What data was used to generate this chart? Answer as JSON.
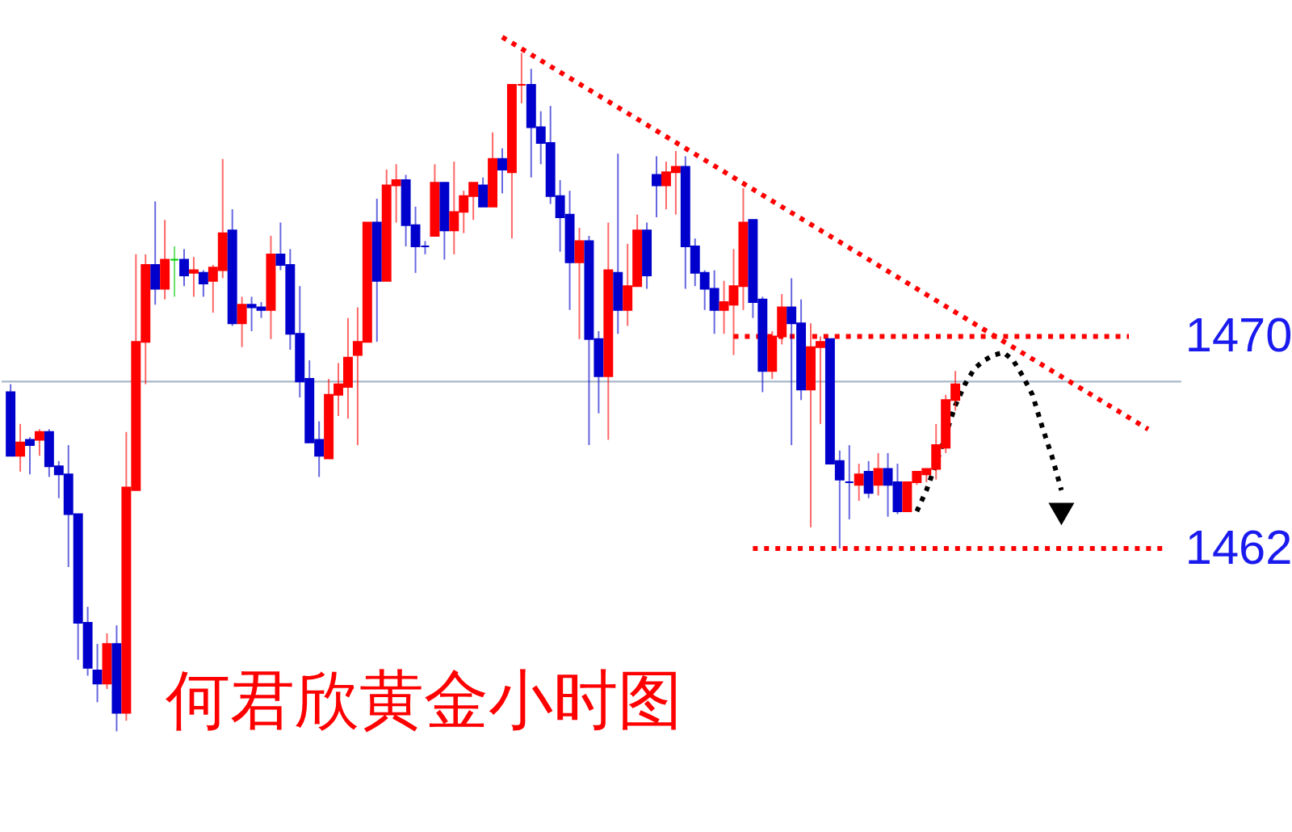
{
  "chart_data": {
    "type": "candlestick",
    "title": "何君欣黄金小时图",
    "categories": [
      null,
      null,
      null,
      null,
      null,
      null,
      null,
      null,
      null,
      null,
      null,
      null,
      null,
      null,
      null,
      null,
      null,
      null,
      null,
      null,
      null,
      null,
      null,
      null,
      null,
      null,
      null,
      null,
      null,
      null,
      null,
      null,
      null,
      null,
      null,
      null,
      null,
      null,
      null,
      null,
      null,
      null,
      null,
      null,
      null,
      null,
      null,
      null,
      null,
      null,
      null,
      null,
      null,
      null,
      null,
      null,
      null,
      null,
      null,
      null,
      null,
      null,
      null,
      null,
      null,
      null,
      null,
      null,
      null,
      null,
      null,
      null,
      null,
      null,
      null,
      null,
      null,
      null,
      null,
      null,
      null,
      null,
      null,
      null,
      null,
      null,
      null,
      null,
      null,
      null,
      null,
      null,
      null,
      null,
      null,
      null,
      null,
      null,
      null,
      null,
      null,
      null,
      null,
      null,
      null,
      null,
      null,
      null,
      null,
      null,
      null,
      null,
      null,
      null,
      null,
      null,
      null,
      null,
      null,
      null,
      null
    ],
    "ohlc": [
      [
        1467.9,
        1468.2,
        1465.5,
        1465.5
      ],
      [
        1465.5,
        1466.7,
        1464.9,
        1466.0
      ],
      [
        1466.1,
        1466.2,
        1464.8,
        1465.9
      ],
      [
        1466.1,
        1466.5,
        1465.5,
        1466.4
      ],
      [
        1466.4,
        1466.5,
        1464.7,
        1465.1
      ],
      [
        1465.1,
        1465.3,
        1463.9,
        1464.8
      ],
      [
        1464.8,
        1465.9,
        1461.3,
        1463.3
      ],
      [
        1463.3,
        1463.3,
        1457.8,
        1459.2
      ],
      [
        1459.2,
        1459.8,
        1457.2,
        1457.5
      ],
      [
        1457.4,
        1458.4,
        1456.2,
        1456.9
      ],
      [
        1456.9,
        1458.8,
        1456.7,
        1458.4
      ],
      [
        1458.4,
        1459.1,
        1455.1,
        1455.8
      ],
      [
        1455.8,
        1466.4,
        1455.5,
        1464.3
      ],
      [
        1464.2,
        1473.1,
        1464.2,
        1469.8
      ],
      [
        1469.8,
        1473.1,
        1468.2,
        1472.7
      ],
      [
        1472.7,
        1475.1,
        1471.2,
        1471.8
      ],
      [
        1471.8,
        1474.4,
        1471.4,
        1472.9
      ],
      [
        1472.9,
        1473.4,
        1471.5,
        1472.9
      ],
      [
        1472.9,
        1473.3,
        1471.9,
        1472.3
      ],
      [
        1472.4,
        1473.0,
        1471.5,
        1472.5
      ],
      [
        1472.4,
        1472.5,
        1471.5,
        1472.0
      ],
      [
        1472.1,
        1472.7,
        1470.9,
        1472.6
      ],
      [
        1472.5,
        1476.7,
        1472.2,
        1473.9
      ],
      [
        1474.0,
        1474.8,
        1470.4,
        1470.5
      ],
      [
        1470.5,
        1471.5,
        1469.6,
        1471.2
      ],
      [
        1471.2,
        1471.5,
        1470.2,
        1471.1
      ],
      [
        1471.1,
        1471.3,
        1470.7,
        1471.0
      ],
      [
        1471.0,
        1473.8,
        1469.9,
        1473.1
      ],
      [
        1473.1,
        1474.3,
        1472.5,
        1472.7
      ],
      [
        1472.7,
        1473.3,
        1469.5,
        1470.1
      ],
      [
        1470.1,
        1471.9,
        1467.7,
        1468.3
      ],
      [
        1468.4,
        1469.1,
        1466.0,
        1466.0
      ],
      [
        1466.1,
        1466.8,
        1464.7,
        1465.5
      ],
      [
        1465.4,
        1468.4,
        1465.4,
        1467.8
      ],
      [
        1467.8,
        1469.0,
        1467.0,
        1468.2
      ],
      [
        1468.1,
        1470.7,
        1466.9,
        1469.2
      ],
      [
        1469.3,
        1471.1,
        1465.9,
        1469.8
      ],
      [
        1469.8,
        1474.3,
        1469.8,
        1474.3
      ],
      [
        1474.3,
        1475.2,
        1469.8,
        1472.1
      ],
      [
        1472.1,
        1476.3,
        1472.1,
        1475.7
      ],
      [
        1475.7,
        1476.5,
        1474.3,
        1475.9
      ],
      [
        1475.9,
        1476.1,
        1473.4,
        1474.2
      ],
      [
        1474.2,
        1474.9,
        1472.4,
        1473.4
      ],
      [
        1473.4,
        1473.6,
        1473.1,
        1473.4
      ],
      [
        1473.8,
        1476.5,
        1473.8,
        1475.8
      ],
      [
        1475.8,
        1475.8,
        1472.9,
        1474.0
      ],
      [
        1474.0,
        1476.6,
        1473.1,
        1474.7
      ],
      [
        1474.7,
        1475.5,
        1473.9,
        1475.3
      ],
      [
        1475.3,
        1475.8,
        1474.4,
        1475.8
      ],
      [
        1475.7,
        1476.0,
        1474.9,
        1474.9
      ],
      [
        1474.9,
        1477.7,
        1474.9,
        1476.7
      ],
      [
        1476.7,
        1477.1,
        1475.4,
        1476.3
      ],
      [
        1476.2,
        1479.5,
        1473.7,
        1479.5
      ],
      [
        1479.5,
        1480.7,
        1478.8,
        1479.5
      ],
      [
        1479.5,
        1480.1,
        1476.0,
        1477.9
      ],
      [
        1477.9,
        1478.5,
        1476.5,
        1477.3
      ],
      [
        1477.3,
        1478.7,
        1475.0,
        1475.3
      ],
      [
        1475.3,
        1475.9,
        1473.2,
        1474.5
      ],
      [
        1474.6,
        1475.5,
        1471.0,
        1472.8
      ],
      [
        1472.8,
        1474.1,
        1469.9,
        1473.6
      ],
      [
        1473.6,
        1473.8,
        1465.9,
        1469.9
      ],
      [
        1469.9,
        1470.2,
        1467.1,
        1468.5
      ],
      [
        1468.5,
        1474.3,
        1466.1,
        1472.5
      ],
      [
        1472.4,
        1476.9,
        1470.1,
        1471.0
      ],
      [
        1471.0,
        1473.5,
        1470.4,
        1471.9
      ],
      [
        1471.9,
        1474.6,
        1471.9,
        1474.0
      ],
      [
        1474.0,
        1474.3,
        1471.8,
        1472.3
      ],
      [
        1476.1,
        1476.8,
        1474.5,
        1475.7
      ],
      [
        1475.7,
        1476.6,
        1474.8,
        1476.2
      ],
      [
        1476.2,
        1477.0,
        1474.6,
        1476.4
      ],
      [
        1476.4,
        1476.8,
        1471.8,
        1473.4
      ],
      [
        1473.4,
        1473.7,
        1471.9,
        1472.4
      ],
      [
        1472.4,
        1472.5,
        1471.0,
        1471.8
      ],
      [
        1471.8,
        1472.5,
        1470.1,
        1471.0
      ],
      [
        1471.0,
        1472.1,
        1470.1,
        1471.3
      ],
      [
        1471.2,
        1473.3,
        1469.3,
        1471.9
      ],
      [
        1471.9,
        1475.6,
        1471.0,
        1474.3
      ],
      [
        1474.4,
        1474.4,
        1470.7,
        1471.3
      ],
      [
        1471.4,
        1471.5,
        1467.9,
        1468.7
      ],
      [
        1468.7,
        1470.2,
        1468.4,
        1470.0
      ],
      [
        1470.0,
        1471.6,
        1469.7,
        1471.1
      ],
      [
        1471.1,
        1472.2,
        1465.9,
        1470.5
      ],
      [
        1470.5,
        1471.4,
        1467.6,
        1468.0
      ],
      [
        1468.0,
        1470.5,
        1462.8,
        1469.6
      ],
      [
        1469.6,
        1470.0,
        1466.7,
        1469.8
      ],
      [
        1469.9,
        1469.9,
        1465.2,
        1465.2
      ],
      [
        1465.3,
        1465.7,
        1462.0,
        1464.6
      ],
      [
        1464.5,
        1465.9,
        1463.1,
        1464.5
      ],
      [
        1464.4,
        1465.2,
        1463.8,
        1464.8
      ],
      [
        1464.9,
        1465.3,
        1463.9,
        1464.1
      ],
      [
        1464.4,
        1465.6,
        1464.0,
        1465.0
      ],
      [
        1465.0,
        1465.6,
        1463.2,
        1464.4
      ],
      [
        1464.5,
        1465.2,
        1463.3,
        1463.4
      ],
      [
        1463.4,
        1464.5,
        1463.4,
        1464.5
      ],
      [
        1464.5,
        1464.9,
        1464.4,
        1464.9
      ],
      [
        1464.8,
        1465.0,
        1464.5,
        1465.0
      ],
      [
        1465.0,
        1466.7,
        1464.6,
        1465.9
      ],
      [
        1465.8,
        1467.8,
        1465.6,
        1467.6
      ],
      [
        1467.6,
        1468.7,
        1467.2,
        1468.2
      ],
      null,
      null,
      null,
      null,
      null,
      null,
      null,
      null,
      null,
      null,
      null,
      null,
      null,
      null,
      null,
      null,
      null,
      null,
      null,
      null,
      null,
      null
    ],
    "colors": [
      "#0000cd",
      "#ff0000",
      "#0000cd",
      "#ff0000",
      "#0000cd",
      "#0000cd",
      "#0000cd",
      "#0000cd",
      "#0000cd",
      "#0000cd",
      "#ff0000",
      "#0000cd",
      "#ff0000",
      "#ff0000",
      "#ff0000",
      "#0000cd",
      "#ff0000",
      "#00cc00",
      "#0000cd",
      "#ff0000",
      "#0000cd",
      "#ff0000",
      "#ff0000",
      "#0000cd",
      "#ff0000",
      "#0000cd",
      "#0000cd",
      "#ff0000",
      "#0000cd",
      "#0000cd",
      "#0000cd",
      "#0000cd",
      "#0000cd",
      "#ff0000",
      "#ff0000",
      "#ff0000",
      "#ff0000",
      "#ff0000",
      "#0000cd",
      "#ff0000",
      "#ff0000",
      "#0000cd",
      "#0000cd",
      "#0000cd",
      "#ff0000",
      "#0000cd",
      "#ff0000",
      "#ff0000",
      "#ff0000",
      "#0000cd",
      "#ff0000",
      "#0000cd",
      "#ff0000",
      "#ff0000",
      "#0000cd",
      "#0000cd",
      "#0000cd",
      "#0000cd",
      "#0000cd",
      "#ff0000",
      "#0000cd",
      "#0000cd",
      "#ff0000",
      "#0000cd",
      "#ff0000",
      "#ff0000",
      "#0000cd",
      "#0000cd",
      "#ff0000",
      "#ff0000",
      "#0000cd",
      "#0000cd",
      "#0000cd",
      "#0000cd",
      "#ff0000",
      "#ff0000",
      "#ff0000",
      "#0000cd",
      "#0000cd",
      "#ff0000",
      "#ff0000",
      "#0000cd",
      "#0000cd",
      "#ff0000",
      "#ff0000",
      "#0000cd",
      "#0000cd",
      "#0000cd",
      "#ff0000",
      "#0000cd",
      "#ff0000",
      "#0000cd",
      "#0000cd",
      "#ff0000",
      "#ff0000",
      "#ff0000",
      "#ff0000",
      "#ff0000",
      "#ff0000",
      null,
      null,
      null,
      null,
      null,
      null,
      null,
      null,
      null,
      null,
      null,
      null,
      null,
      null,
      null,
      null,
      null,
      null,
      null,
      null,
      null,
      null
    ],
    "series": [
      {
        "type": "line",
        "values": [
          null,
          null,
          null,
          null,
          null,
          null,
          null,
          null,
          null,
          null,
          null,
          null,
          null,
          null,
          null,
          null,
          null,
          null,
          null,
          null,
          null,
          null,
          null,
          null,
          null,
          null,
          null,
          null,
          null,
          null,
          null,
          null,
          null,
          null,
          null,
          null,
          null,
          null,
          null,
          null,
          null,
          null,
          null,
          null,
          null,
          null,
          null,
          null,
          null,
          null,
          null,
          1481.3,
          null,
          null,
          null,
          null,
          null,
          null,
          null,
          null,
          null,
          null,
          null,
          null,
          null,
          null,
          null,
          null,
          null,
          null,
          null,
          null,
          null,
          null,
          null,
          null,
          null,
          null,
          null,
          null,
          null,
          null,
          null,
          null,
          null,
          null,
          null,
          null,
          null,
          null,
          null,
          null,
          null,
          null,
          null,
          null,
          null,
          null,
          null,
          null,
          null,
          null,
          null,
          null,
          null,
          null,
          null,
          null,
          null,
          null,
          null,
          null,
          null,
          null,
          null,
          null,
          null,
          null,
          1466.5,
          null,
          null
        ],
        "color": "#ff0000",
        "line_style": "dotted"
      },
      {
        "type": "line",
        "values": [
          null,
          null,
          null,
          null,
          null,
          null,
          null,
          null,
          null,
          null,
          null,
          null,
          null,
          null,
          null,
          null,
          null,
          null,
          null,
          null,
          null,
          null,
          null,
          null,
          null,
          null,
          null,
          null,
          null,
          null,
          null,
          null,
          null,
          null,
          null,
          null,
          null,
          null,
          null,
          null,
          null,
          null,
          null,
          null,
          null,
          null,
          null,
          null,
          null,
          null,
          null,
          null,
          null,
          null,
          null,
          null,
          null,
          null,
          null,
          null,
          null,
          null,
          null,
          null,
          null,
          null,
          null,
          null,
          null,
          null,
          null,
          null,
          null,
          null,
          null,
          1470,
          null,
          null,
          null,
          null,
          null,
          null,
          null,
          null,
          null,
          null,
          null,
          null,
          null,
          null,
          null,
          null,
          null,
          null,
          null,
          null,
          null,
          null,
          null,
          null,
          null,
          null,
          null,
          null,
          null,
          null,
          null,
          null,
          null,
          null,
          null,
          null,
          null,
          null,
          null,
          null,
          1470,
          null,
          null,
          null,
          null
        ],
        "color": "#ff0000",
        "line_style": "dotted"
      },
      {
        "type": "line",
        "values": [
          null,
          null,
          null,
          null,
          null,
          null,
          null,
          null,
          null,
          null,
          null,
          null,
          null,
          null,
          null,
          null,
          null,
          null,
          null,
          null,
          null,
          null,
          null,
          null,
          null,
          null,
          null,
          null,
          null,
          null,
          null,
          null,
          null,
          null,
          null,
          null,
          null,
          null,
          null,
          null,
          null,
          null,
          null,
          null,
          null,
          null,
          null,
          null,
          null,
          null,
          null,
          null,
          null,
          null,
          null,
          null,
          null,
          null,
          null,
          null,
          null,
          null,
          null,
          null,
          null,
          null,
          null,
          null,
          null,
          null,
          null,
          null,
          null,
          null,
          null,
          null,
          null,
          1462,
          null,
          null,
          null,
          null,
          null,
          null,
          null,
          null,
          null,
          null,
          null,
          null,
          null,
          null,
          null,
          null,
          null,
          null,
          null,
          null,
          null,
          null,
          null,
          null,
          null,
          null,
          null,
          null,
          null,
          null,
          null,
          null,
          null,
          null,
          null,
          null,
          null,
          null,
          null,
          null,
          null,
          null,
          1462
        ],
        "color": "#ff0000",
        "line_style": "dotted"
      },
      {
        "type": "line",
        "values": [
          null,
          null,
          null,
          null,
          null,
          null,
          null,
          null,
          null,
          null,
          null,
          null,
          null,
          null,
          null,
          null,
          null,
          null,
          null,
          null,
          null,
          null,
          null,
          null,
          null,
          null,
          null,
          null,
          null,
          null,
          null,
          null,
          null,
          null,
          null,
          null,
          null,
          null,
          null,
          null,
          null,
          null,
          null,
          null,
          null,
          null,
          null,
          null,
          null,
          null,
          null,
          null,
          null,
          null,
          null,
          null,
          null,
          null,
          null,
          null,
          null,
          null,
          null,
          null,
          null,
          null,
          null,
          null,
          null,
          null,
          null,
          null,
          null,
          null,
          null,
          null,
          null,
          null,
          null,
          null,
          null,
          null,
          null,
          null,
          null,
          null,
          null,
          null,
          null,
          null,
          null,
          null,
          null,
          null,
          1463.4,
          1464.2,
          1465.2,
          null,
          1467.4,
          1468.2,
          1468.8,
          1469.1,
          1469.3,
          1469.4,
          1469.1,
          1468.5,
          1467.8,
          1466.6,
          1465.5,
          1464.2,
          null,
          null,
          null,
          null,
          null,
          null,
          null,
          null,
          null,
          null,
          null
        ],
        "color": "#000000",
        "line_style": "dotted"
      },
      {
        "type": "scatter",
        "values": [
          null,
          null,
          null,
          null,
          null,
          null,
          null,
          null,
          null,
          null,
          null,
          null,
          null,
          null,
          null,
          null,
          null,
          null,
          null,
          null,
          null,
          null,
          null,
          null,
          null,
          null,
          null,
          null,
          null,
          null,
          null,
          null,
          null,
          null,
          null,
          null,
          null,
          null,
          null,
          null,
          null,
          null,
          null,
          null,
          null,
          null,
          null,
          null,
          null,
          null,
          null,
          null,
          null,
          null,
          null,
          null,
          null,
          null,
          null,
          null,
          null,
          null,
          null,
          null,
          null,
          null,
          null,
          null,
          null,
          null,
          null,
          null,
          null,
          null,
          null,
          null,
          null,
          null,
          null,
          null,
          null,
          null,
          null,
          null,
          null,
          null,
          null,
          null,
          null,
          null,
          null,
          null,
          null,
          null,
          null,
          null,
          null,
          null,
          null,
          null,
          null,
          null,
          null,
          null,
          null,
          null,
          null,
          null,
          null,
          1463.3,
          null,
          null,
          null,
          null,
          null,
          null,
          null,
          null,
          null,
          null,
          null
        ],
        "color": "#000000",
        "marker": "triangle"
      }
    ],
    "ref_lines": [
      {
        "axis": "y",
        "value": 1468.3,
        "color": "#a8b8c8"
      }
    ],
    "ylim": [
      1451.4,
      1482.6
    ],
    "yticks": [
      1462,
      1470
    ],
    "tick_labels": "y"
  }
}
